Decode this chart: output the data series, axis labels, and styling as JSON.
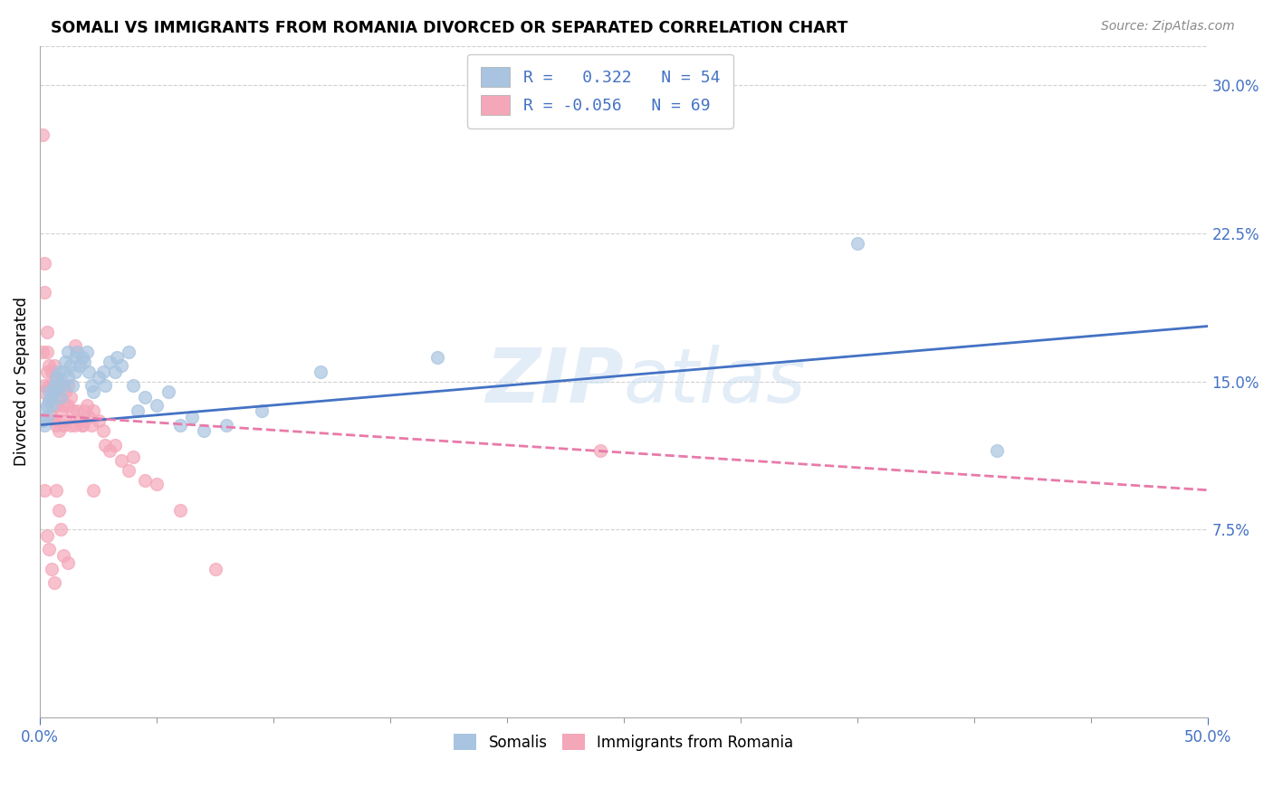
{
  "title": "SOMALI VS IMMIGRANTS FROM ROMANIA DIVORCED OR SEPARATED CORRELATION CHART",
  "source": "Source: ZipAtlas.com",
  "ylabel": "Divorced or Separated",
  "right_ytick_vals": [
    0.075,
    0.15,
    0.225,
    0.3
  ],
  "right_ytick_labels": [
    "7.5%",
    "15.0%",
    "22.5%",
    "30.0%"
  ],
  "watermark": "ZIPatlas",
  "somali_color": "#a8c4e0",
  "romania_color": "#f4a7b9",
  "somali_line_color": "#4472c4",
  "romania_line_color": "#e87aaa",
  "xmin": 0.0,
  "xmax": 0.5,
  "ymin": -0.02,
  "ymax": 0.32,
  "somali_line_x0": 0.0,
  "somali_line_y0": 0.128,
  "somali_line_x1": 0.5,
  "somali_line_y1": 0.178,
  "romania_line_x0": 0.0,
  "romania_line_y0": 0.133,
  "romania_line_x1": 0.5,
  "romania_line_y1": 0.095,
  "somali_points_x": [
    0.001,
    0.001,
    0.002,
    0.003,
    0.003,
    0.004,
    0.004,
    0.005,
    0.005,
    0.006,
    0.006,
    0.007,
    0.008,
    0.008,
    0.009,
    0.01,
    0.01,
    0.011,
    0.012,
    0.012,
    0.013,
    0.014,
    0.015,
    0.015,
    0.016,
    0.017,
    0.018,
    0.019,
    0.02,
    0.021,
    0.022,
    0.023,
    0.025,
    0.027,
    0.028,
    0.03,
    0.032,
    0.033,
    0.035,
    0.038,
    0.04,
    0.042,
    0.045,
    0.05,
    0.055,
    0.06,
    0.065,
    0.07,
    0.08,
    0.095,
    0.12,
    0.17,
    0.35,
    0.41
  ],
  "somali_points_y": [
    0.13,
    0.135,
    0.128,
    0.138,
    0.132,
    0.145,
    0.14,
    0.138,
    0.142,
    0.148,
    0.145,
    0.152,
    0.155,
    0.148,
    0.142,
    0.155,
    0.148,
    0.16,
    0.152,
    0.165,
    0.158,
    0.148,
    0.162,
    0.155,
    0.165,
    0.158,
    0.162,
    0.16,
    0.165,
    0.155,
    0.148,
    0.145,
    0.152,
    0.155,
    0.148,
    0.16,
    0.155,
    0.162,
    0.158,
    0.165,
    0.148,
    0.135,
    0.142,
    0.138,
    0.145,
    0.128,
    0.132,
    0.125,
    0.128,
    0.135,
    0.155,
    0.162,
    0.22,
    0.115
  ],
  "romania_points_x": [
    0.001,
    0.001,
    0.001,
    0.002,
    0.002,
    0.002,
    0.003,
    0.003,
    0.003,
    0.004,
    0.004,
    0.004,
    0.005,
    0.005,
    0.005,
    0.006,
    0.006,
    0.006,
    0.007,
    0.007,
    0.007,
    0.008,
    0.008,
    0.009,
    0.009,
    0.01,
    0.01,
    0.011,
    0.011,
    0.012,
    0.012,
    0.013,
    0.013,
    0.014,
    0.015,
    0.016,
    0.017,
    0.018,
    0.019,
    0.02,
    0.021,
    0.022,
    0.023,
    0.025,
    0.027,
    0.028,
    0.03,
    0.032,
    0.035,
    0.038,
    0.04,
    0.045,
    0.05,
    0.06,
    0.075,
    0.002,
    0.003,
    0.004,
    0.005,
    0.006,
    0.007,
    0.008,
    0.009,
    0.01,
    0.012,
    0.015,
    0.018,
    0.023,
    0.24
  ],
  "romania_points_y": [
    0.275,
    0.145,
    0.165,
    0.195,
    0.21,
    0.148,
    0.165,
    0.155,
    0.175,
    0.148,
    0.158,
    0.14,
    0.148,
    0.132,
    0.155,
    0.145,
    0.13,
    0.158,
    0.152,
    0.128,
    0.138,
    0.142,
    0.125,
    0.135,
    0.148,
    0.138,
    0.128,
    0.145,
    0.13,
    0.148,
    0.138,
    0.142,
    0.128,
    0.135,
    0.128,
    0.135,
    0.13,
    0.128,
    0.135,
    0.138,
    0.132,
    0.128,
    0.135,
    0.13,
    0.125,
    0.118,
    0.115,
    0.118,
    0.11,
    0.105,
    0.112,
    0.1,
    0.098,
    0.085,
    0.055,
    0.095,
    0.072,
    0.065,
    0.055,
    0.048,
    0.095,
    0.085,
    0.075,
    0.062,
    0.058,
    0.168,
    0.128,
    0.095,
    0.115
  ]
}
